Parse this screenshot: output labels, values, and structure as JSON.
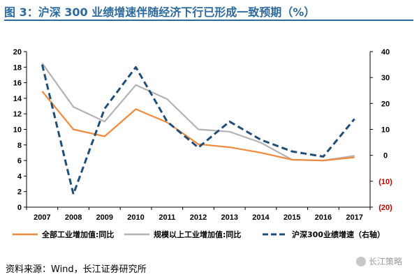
{
  "title": "图 3：沪深 300 业绩增速伴随经济下行已形成一致预期（%）",
  "source": "资料来源：Wind，长江证券研究所",
  "watermark": "长江策略",
  "colors": {
    "title": "#2c6a9e",
    "series_industry": "#f08a3c",
    "series_above_scale": "#b3b3b3",
    "series_hs300": "#1f4e79",
    "right_axis_negative": "#c00000"
  },
  "chart_data": {
    "type": "line",
    "categories": [
      "2007",
      "2008",
      "2009",
      "2010",
      "2011",
      "2012",
      "2013",
      "2014",
      "2015",
      "2016",
      "2017"
    ],
    "y_left": {
      "ylim": [
        0,
        20
      ],
      "ticks": [
        "0",
        "2",
        "4",
        "6",
        "8",
        "10",
        "12",
        "14",
        "16",
        "18",
        "20"
      ]
    },
    "y_right": {
      "ylim": [
        -20,
        40
      ],
      "ticks": [
        "(20)",
        "(10)",
        "0",
        "10",
        "20",
        "30",
        "40"
      ],
      "tick_values": [
        -20,
        -10,
        0,
        10,
        20,
        30,
        40
      ]
    },
    "grid": false,
    "legend_position": "bottom",
    "series": [
      {
        "name": "全部工业增加值:同比",
        "axis": "left",
        "style": "solid",
        "values": [
          14.9,
          10.0,
          9.1,
          12.6,
          10.9,
          8.1,
          7.7,
          7.0,
          6.1,
          6.0,
          6.4
        ]
      },
      {
        "name": "规模以上工业增加值:同比",
        "axis": "left",
        "style": "solid",
        "values": [
          18.5,
          12.9,
          11.0,
          15.7,
          13.9,
          10.0,
          9.7,
          8.3,
          6.1,
          6.0,
          6.6
        ]
      },
      {
        "name": "沪深300业绩增速（右轴）",
        "axis": "right",
        "style": "dashed",
        "values": [
          35,
          -15,
          18,
          34,
          13,
          3,
          13,
          6,
          1.5,
          -0.5,
          14
        ]
      }
    ]
  }
}
